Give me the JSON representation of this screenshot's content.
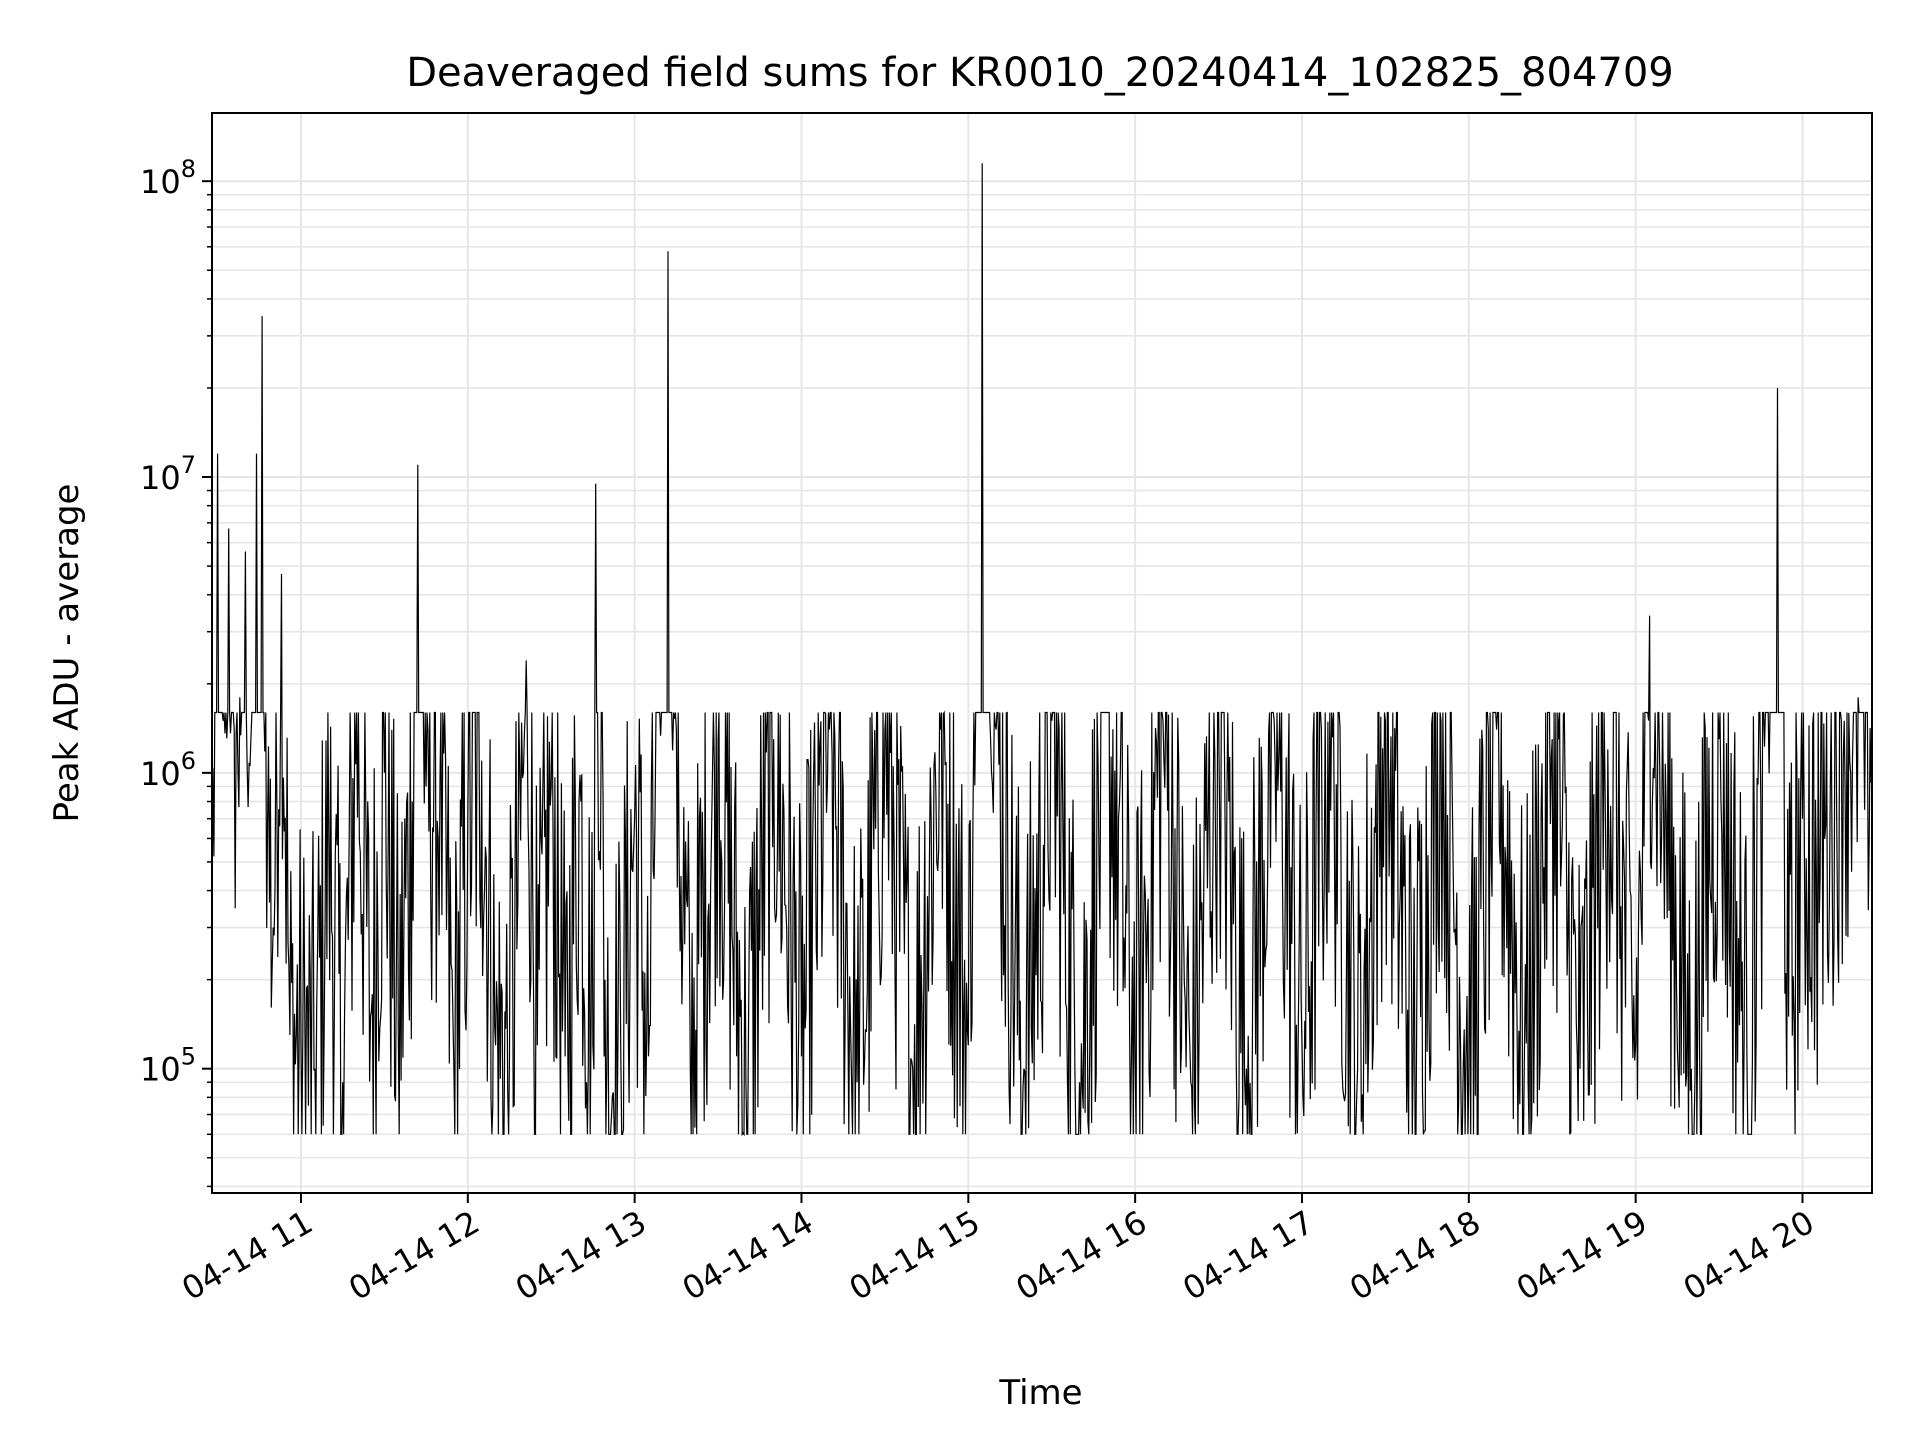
{
  "chart_data": {
    "type": "line",
    "title": "Deaveraged field sums for KR0010_20240414_102825_804709",
    "xlabel": "Time",
    "ylabel": "Peak ADU - average",
    "yscale": "log",
    "ylim": [
      38000,
      170000000
    ],
    "xlim": [
      "2024-04-14 10:28",
      "2024-04-14 20:25"
    ],
    "grid": true,
    "x_ticks": [
      "04-14 11",
      "04-14 12",
      "04-14 13",
      "04-14 14",
      "04-14 15",
      "04-14 16",
      "04-14 17",
      "04-14 18",
      "04-14 19",
      "04-14 20"
    ],
    "y_ticks": [
      {
        "base": "10",
        "exp": "5"
      },
      {
        "base": "10",
        "exp": "6"
      },
      {
        "base": "10",
        "exp": "7"
      },
      {
        "base": "10",
        "exp": "8"
      }
    ],
    "line_color": "#000000",
    "series": [
      {
        "x": [
          "2024-04-14 10:28",
          "2024-04-14 10:30",
          "2024-04-14 10:32",
          "2024-04-14 10:34",
          "2024-04-14 10:36",
          "2024-04-14 10:38",
          "2024-04-14 10:40",
          "2024-04-14 10:42",
          "2024-04-14 10:44",
          "2024-04-14 10:46",
          "2024-04-14 10:48",
          "2024-04-14 10:50",
          "2024-04-14 10:53",
          "2024-04-14 10:56",
          "2024-04-14 11:00",
          "2024-04-14 11:05",
          "2024-04-14 11:10",
          "2024-04-14 11:15",
          "2024-04-14 11:20",
          "2024-04-14 11:25",
          "2024-04-14 11:30",
          "2024-04-14 11:35",
          "2024-04-14 11:40",
          "2024-04-14 11:42",
          "2024-04-14 11:45",
          "2024-04-14 11:50",
          "2024-04-14 11:55",
          "2024-04-14 12:00",
          "2024-04-14 12:05",
          "2024-04-14 12:10",
          "2024-04-14 12:15",
          "2024-04-14 12:20",
          "2024-04-14 12:21",
          "2024-04-14 12:25",
          "2024-04-14 12:30",
          "2024-04-14 12:35",
          "2024-04-14 12:40",
          "2024-04-14 12:45",
          "2024-04-14 12:46",
          "2024-04-14 12:50",
          "2024-04-14 12:55",
          "2024-04-14 13:00",
          "2024-04-14 13:05",
          "2024-04-14 13:12",
          "2024-04-14 13:15",
          "2024-04-14 13:20",
          "2024-04-14 13:30",
          "2024-04-14 13:40",
          "2024-04-14 13:50",
          "2024-04-14 14:00",
          "2024-04-14 14:10",
          "2024-04-14 14:20",
          "2024-04-14 14:30",
          "2024-04-14 14:40",
          "2024-04-14 14:50",
          "2024-04-14 15:00",
          "2024-04-14 15:05",
          "2024-04-14 15:10",
          "2024-04-14 15:20",
          "2024-04-14 15:30",
          "2024-04-14 15:40",
          "2024-04-14 15:50",
          "2024-04-14 16:00",
          "2024-04-14 16:10",
          "2024-04-14 16:20",
          "2024-04-14 16:30",
          "2024-04-14 16:40",
          "2024-04-14 16:50",
          "2024-04-14 17:00",
          "2024-04-14 17:10",
          "2024-04-14 17:20",
          "2024-04-14 17:30",
          "2024-04-14 17:40",
          "2024-04-14 17:50",
          "2024-04-14 18:00",
          "2024-04-14 18:10",
          "2024-04-14 18:20",
          "2024-04-14 18:30",
          "2024-04-14 18:40",
          "2024-04-14 18:50",
          "2024-04-14 19:00",
          "2024-04-14 19:05",
          "2024-04-14 19:10",
          "2024-04-14 19:20",
          "2024-04-14 19:30",
          "2024-04-14 19:40",
          "2024-04-14 19:45",
          "2024-04-14 19:51",
          "2024-04-14 19:55",
          "2024-04-14 20:00",
          "2024-04-14 20:05",
          "2024-04-14 20:10",
          "2024-04-14 20:15",
          "2024-04-14 20:20",
          "2024-04-14 20:25"
        ],
        "values": [
          320000,
          12000000,
          1500000,
          6700000,
          1400000,
          1800000,
          5600000,
          1300000,
          12000000,
          35000000,
          700000,
          300000,
          4700000,
          130000,
          120000,
          100000,
          600000,
          90000,
          1600000,
          150000,
          1000000,
          130000,
          800000,
          11000000,
          900000,
          950000,
          100000,
          700000,
          1100000,
          120000,
          110000,
          1000000,
          2400000,
          120000,
          900000,
          110000,
          800000,
          120000,
          9500000,
          100000,
          120000,
          700000,
          110000,
          58000000,
          1400000,
          100000,
          1300000,
          90000,
          1300000,
          110000,
          1400000,
          90000,
          1400000,
          100000,
          1400000,
          120000,
          115000000,
          1400000,
          100000,
          1500000,
          90000,
          1600000,
          110000,
          1500000,
          90000,
          1600000,
          100000,
          1500000,
          120000,
          1600000,
          100000,
          1500000,
          110000,
          1500000,
          90000,
          1400000,
          110000,
          1300000,
          100000,
          1200000,
          120000,
          3400000,
          800000,
          100000,
          1300000,
          110000,
          800000,
          20000000,
          150000,
          700000,
          450000,
          900000,
          1500000,
          1800000,
          1400000
        ]
      }
    ]
  }
}
